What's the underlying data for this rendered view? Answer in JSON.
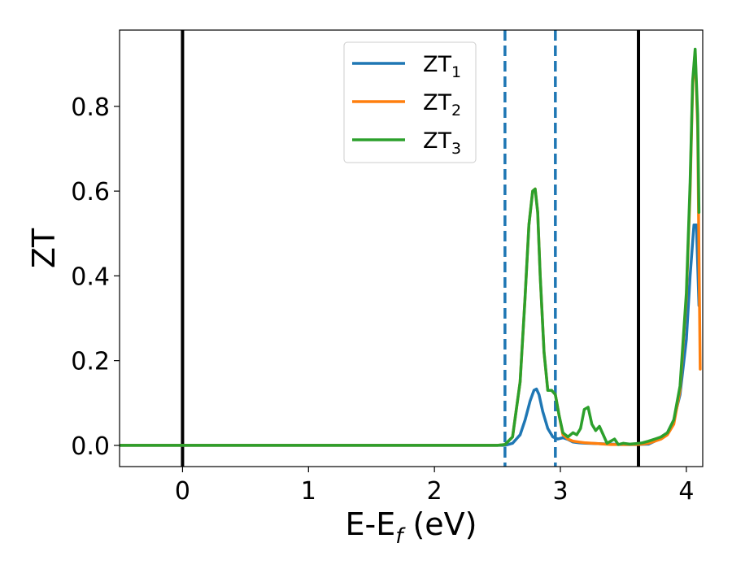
{
  "chart_data": {
    "type": "line",
    "xlabel_main": "E-E",
    "xlabel_sub": "f",
    "xlabel_unit": " (eV)",
    "ylabel": "ZT",
    "xlim": [
      -0.5,
      4.13
    ],
    "ylim": [
      -0.05,
      0.98
    ],
    "xticks": [
      0,
      1,
      2,
      3,
      4
    ],
    "yticks": [
      0.0,
      0.2,
      0.4,
      0.6,
      0.8
    ],
    "xtick_labels": [
      "0",
      "1",
      "2",
      "3",
      "4"
    ],
    "ytick_labels": [
      "0.0",
      "0.2",
      "0.4",
      "0.6",
      "0.8"
    ],
    "grid": false,
    "legend_position": "top-center",
    "vlines": [
      {
        "x": 0.0,
        "style": "solid",
        "color": "#000000"
      },
      {
        "x": 3.62,
        "style": "solid",
        "color": "#000000"
      },
      {
        "x": 2.56,
        "style": "dashed",
        "color": "#1f77b4"
      },
      {
        "x": 2.96,
        "style": "dashed",
        "color": "#1f77b4"
      }
    ],
    "series": [
      {
        "name": "ZT",
        "name_sub": "1",
        "color": "#1f77b4",
        "x": [
          -0.5,
          2.5,
          2.56,
          2.62,
          2.68,
          2.72,
          2.76,
          2.79,
          2.81,
          2.83,
          2.86,
          2.9,
          2.94,
          2.98,
          3.02,
          3.06,
          3.1,
          3.15,
          3.2,
          3.3,
          3.4,
          3.5,
          3.6,
          3.7,
          3.75,
          3.8,
          3.85,
          3.9,
          3.95,
          4.0,
          4.03,
          4.06,
          4.08,
          4.1
        ],
        "y": [
          0.0,
          0.0,
          0.0,
          0.005,
          0.025,
          0.06,
          0.105,
          0.13,
          0.133,
          0.12,
          0.08,
          0.04,
          0.02,
          0.015,
          0.018,
          0.014,
          0.008,
          0.006,
          0.005,
          0.004,
          0.003,
          0.002,
          0.002,
          0.003,
          0.01,
          0.02,
          0.03,
          0.06,
          0.12,
          0.25,
          0.4,
          0.52,
          0.52,
          0.33
        ]
      },
      {
        "name": "ZT",
        "name_sub": "2",
        "color": "#ff7f0e",
        "x": [
          -0.5,
          2.5,
          2.56,
          2.62,
          2.68,
          2.72,
          2.75,
          2.78,
          2.8,
          2.82,
          2.84,
          2.87,
          2.9,
          2.93,
          2.96,
          2.99,
          3.02,
          3.06,
          3.1,
          3.15,
          3.2,
          3.25,
          3.3,
          3.35,
          3.4,
          3.45,
          3.5,
          3.55,
          3.6,
          3.65,
          3.7,
          3.75,
          3.8,
          3.85,
          3.9,
          3.95,
          4.0,
          4.03,
          4.05,
          4.07,
          4.09,
          4.1,
          4.11
        ],
        "y": [
          0.0,
          0.0,
          0.002,
          0.02,
          0.15,
          0.35,
          0.52,
          0.6,
          0.605,
          0.55,
          0.4,
          0.22,
          0.13,
          0.13,
          0.12,
          0.07,
          0.025,
          0.015,
          0.01,
          0.008,
          0.006,
          0.005,
          0.004,
          0.003,
          0.002,
          0.002,
          0.002,
          0.002,
          0.002,
          0.003,
          0.005,
          0.01,
          0.015,
          0.025,
          0.05,
          0.13,
          0.35,
          0.6,
          0.85,
          0.93,
          0.75,
          0.45,
          0.18
        ]
      },
      {
        "name": "ZT",
        "name_sub": "3",
        "color": "#2ca02c",
        "x": [
          -0.5,
          2.5,
          2.56,
          2.62,
          2.68,
          2.72,
          2.75,
          2.78,
          2.8,
          2.82,
          2.84,
          2.87,
          2.9,
          2.93,
          2.96,
          2.99,
          3.02,
          3.06,
          3.1,
          3.13,
          3.16,
          3.19,
          3.22,
          3.25,
          3.28,
          3.31,
          3.34,
          3.37,
          3.4,
          3.43,
          3.46,
          3.5,
          3.55,
          3.6,
          3.65,
          3.7,
          3.75,
          3.8,
          3.85,
          3.9,
          3.95,
          4.0,
          4.03,
          4.05,
          4.07,
          4.09,
          4.1
        ],
        "y": [
          0.0,
          0.0,
          0.002,
          0.02,
          0.15,
          0.35,
          0.52,
          0.6,
          0.605,
          0.55,
          0.4,
          0.22,
          0.13,
          0.13,
          0.12,
          0.07,
          0.03,
          0.02,
          0.03,
          0.025,
          0.04,
          0.085,
          0.09,
          0.05,
          0.035,
          0.045,
          0.025,
          0.005,
          0.01,
          0.015,
          0.002,
          0.005,
          0.003,
          0.004,
          0.006,
          0.01,
          0.015,
          0.02,
          0.03,
          0.06,
          0.14,
          0.36,
          0.62,
          0.86,
          0.935,
          0.78,
          0.55
        ]
      }
    ]
  }
}
